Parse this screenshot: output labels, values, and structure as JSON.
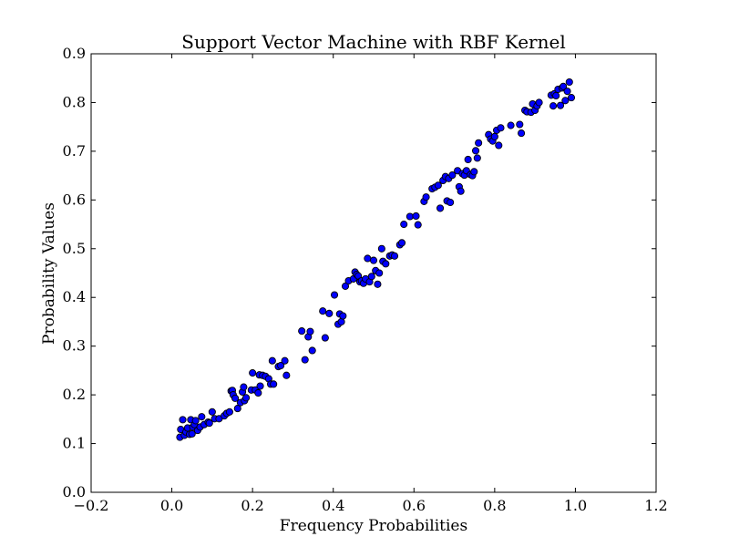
{
  "chart_data": {
    "type": "scatter",
    "title": "Support Vector Machine with RBF Kernel",
    "xlabel": "Frequency Probabilities",
    "ylabel": "Probability Values",
    "xlim": [
      -0.2,
      1.2
    ],
    "ylim": [
      0.0,
      0.9
    ],
    "x_ticks": [
      -0.2,
      0.0,
      0.2,
      0.4,
      0.6,
      0.8,
      1.0,
      1.2
    ],
    "x_tick_labels": [
      "−0.2",
      "0.0",
      "0.2",
      "0.4",
      "0.6",
      "0.8",
      "1.0",
      "1.2"
    ],
    "y_ticks": [
      0.0,
      0.1,
      0.2,
      0.3,
      0.4,
      0.5,
      0.6,
      0.7,
      0.8,
      0.9
    ],
    "y_tick_labels": [
      "0.0",
      "0.1",
      "0.2",
      "0.3",
      "0.4",
      "0.5",
      "0.6",
      "0.7",
      "0.8",
      "0.9"
    ],
    "grid": false,
    "marker_color": "#0000ff",
    "marker_edge": "#000000",
    "points": [
      [
        0.02,
        0.113
      ],
      [
        0.022,
        0.129
      ],
      [
        0.027,
        0.149
      ],
      [
        0.031,
        0.117
      ],
      [
        0.035,
        0.124
      ],
      [
        0.039,
        0.132
      ],
      [
        0.044,
        0.119
      ],
      [
        0.047,
        0.149
      ],
      [
        0.05,
        0.12
      ],
      [
        0.052,
        0.134
      ],
      [
        0.056,
        0.139
      ],
      [
        0.059,
        0.147
      ],
      [
        0.064,
        0.127
      ],
      [
        0.07,
        0.134
      ],
      [
        0.074,
        0.155
      ],
      [
        0.08,
        0.139
      ],
      [
        0.09,
        0.144
      ],
      [
        0.093,
        0.142
      ],
      [
        0.1,
        0.165
      ],
      [
        0.106,
        0.151
      ],
      [
        0.117,
        0.151
      ],
      [
        0.13,
        0.157
      ],
      [
        0.136,
        0.162
      ],
      [
        0.143,
        0.165
      ],
      [
        0.147,
        0.208
      ],
      [
        0.15,
        0.209
      ],
      [
        0.152,
        0.2
      ],
      [
        0.157,
        0.193
      ],
      [
        0.163,
        0.172
      ],
      [
        0.17,
        0.184
      ],
      [
        0.175,
        0.206
      ],
      [
        0.178,
        0.216
      ],
      [
        0.18,
        0.188
      ],
      [
        0.184,
        0.194
      ],
      [
        0.197,
        0.21
      ],
      [
        0.2,
        0.245
      ],
      [
        0.207,
        0.21
      ],
      [
        0.214,
        0.204
      ],
      [
        0.217,
        0.241
      ],
      [
        0.219,
        0.218
      ],
      [
        0.225,
        0.24
      ],
      [
        0.232,
        0.238
      ],
      [
        0.24,
        0.233
      ],
      [
        0.245,
        0.222
      ],
      [
        0.249,
        0.27
      ],
      [
        0.252,
        0.222
      ],
      [
        0.264,
        0.258
      ],
      [
        0.27,
        0.26
      ],
      [
        0.28,
        0.27
      ],
      [
        0.284,
        0.24
      ],
      [
        0.322,
        0.331
      ],
      [
        0.33,
        0.272
      ],
      [
        0.338,
        0.319
      ],
      [
        0.343,
        0.33
      ],
      [
        0.348,
        0.291
      ],
      [
        0.374,
        0.372
      ],
      [
        0.38,
        0.317
      ],
      [
        0.39,
        0.367
      ],
      [
        0.403,
        0.405
      ],
      [
        0.412,
        0.345
      ],
      [
        0.416,
        0.366
      ],
      [
        0.42,
        0.35
      ],
      [
        0.424,
        0.362
      ],
      [
        0.43,
        0.423
      ],
      [
        0.438,
        0.434
      ],
      [
        0.45,
        0.438
      ],
      [
        0.454,
        0.452
      ],
      [
        0.458,
        0.447
      ],
      [
        0.462,
        0.444
      ],
      [
        0.466,
        0.432
      ],
      [
        0.47,
        0.434
      ],
      [
        0.475,
        0.429
      ],
      [
        0.48,
        0.438
      ],
      [
        0.485,
        0.48
      ],
      [
        0.49,
        0.432
      ],
      [
        0.495,
        0.443
      ],
      [
        0.5,
        0.476
      ],
      [
        0.505,
        0.455
      ],
      [
        0.51,
        0.427
      ],
      [
        0.514,
        0.45
      ],
      [
        0.52,
        0.5
      ],
      [
        0.523,
        0.474
      ],
      [
        0.53,
        0.469
      ],
      [
        0.54,
        0.485
      ],
      [
        0.546,
        0.487
      ],
      [
        0.552,
        0.485
      ],
      [
        0.565,
        0.508
      ],
      [
        0.57,
        0.512
      ],
      [
        0.575,
        0.55
      ],
      [
        0.59,
        0.566
      ],
      [
        0.605,
        0.567
      ],
      [
        0.61,
        0.549
      ],
      [
        0.625,
        0.597
      ],
      [
        0.63,
        0.606
      ],
      [
        0.645,
        0.623
      ],
      [
        0.652,
        0.626
      ],
      [
        0.66,
        0.63
      ],
      [
        0.665,
        0.583
      ],
      [
        0.672,
        0.64
      ],
      [
        0.678,
        0.648
      ],
      [
        0.682,
        0.598
      ],
      [
        0.686,
        0.644
      ],
      [
        0.69,
        0.595
      ],
      [
        0.695,
        0.651
      ],
      [
        0.708,
        0.66
      ],
      [
        0.712,
        0.627
      ],
      [
        0.716,
        0.618
      ],
      [
        0.72,
        0.654
      ],
      [
        0.725,
        0.651
      ],
      [
        0.73,
        0.66
      ],
      [
        0.734,
        0.683
      ],
      [
        0.74,
        0.652
      ],
      [
        0.745,
        0.65
      ],
      [
        0.749,
        0.658
      ],
      [
        0.753,
        0.701
      ],
      [
        0.757,
        0.686
      ],
      [
        0.76,
        0.717
      ],
      [
        0.785,
        0.734
      ],
      [
        0.79,
        0.725
      ],
      [
        0.795,
        0.721
      ],
      [
        0.8,
        0.73
      ],
      [
        0.805,
        0.743
      ],
      [
        0.81,
        0.712
      ],
      [
        0.815,
        0.748
      ],
      [
        0.84,
        0.753
      ],
      [
        0.862,
        0.755
      ],
      [
        0.866,
        0.737
      ],
      [
        0.875,
        0.784
      ],
      [
        0.88,
        0.781
      ],
      [
        0.89,
        0.78
      ],
      [
        0.894,
        0.797
      ],
      [
        0.9,
        0.784
      ],
      [
        0.905,
        0.793
      ],
      [
        0.91,
        0.8
      ],
      [
        0.94,
        0.815
      ],
      [
        0.945,
        0.793
      ],
      [
        0.948,
        0.818
      ],
      [
        0.952,
        0.814
      ],
      [
        0.957,
        0.827
      ],
      [
        0.963,
        0.794
      ],
      [
        0.967,
        0.83
      ],
      [
        0.97,
        0.833
      ],
      [
        0.975,
        0.804
      ],
      [
        0.98,
        0.823
      ],
      [
        0.985,
        0.842
      ],
      [
        0.99,
        0.81
      ]
    ]
  }
}
